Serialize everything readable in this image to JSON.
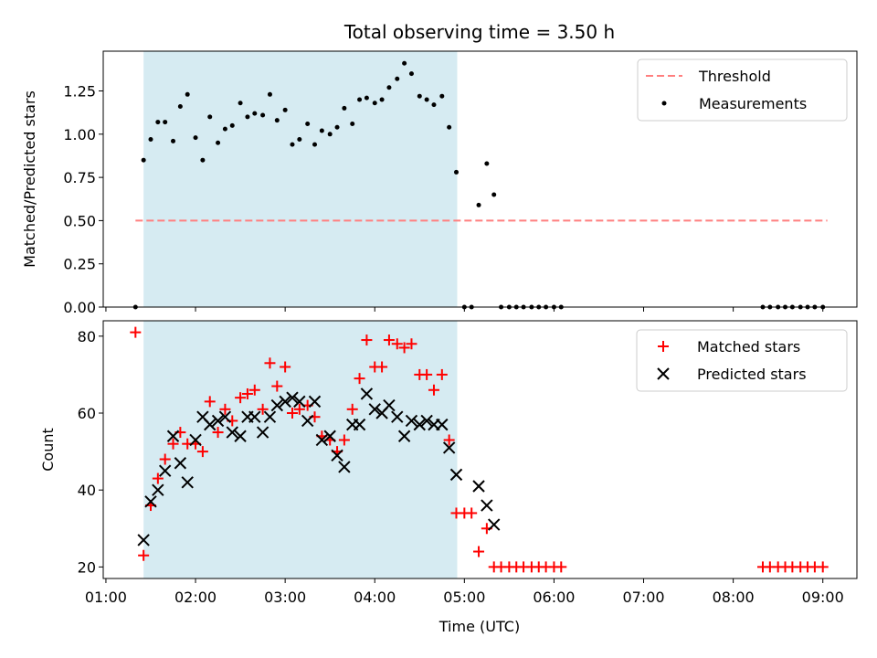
{
  "title": "Total observing time = 3.50 h",
  "colors": {
    "threshold": "#ff7f7f",
    "measurements": "#000000",
    "matched": "#ff0000",
    "predicted": "#000000",
    "span": "#add8e6"
  },
  "chart_data": [
    {
      "type": "scatter",
      "title": "Total observing time = 3.50 h",
      "xlabel": "",
      "ylabel": "Matched/Predicted stars",
      "xlim": [
        0.97,
        9.38
      ],
      "ylim": [
        0,
        1.48
      ],
      "yticks": [
        0.0,
        0.25,
        0.5,
        0.75,
        1.0,
        1.25
      ],
      "ytick_labels": [
        "0.00",
        "0.25",
        "0.50",
        "0.75",
        "1.00",
        "1.25"
      ],
      "xticks": [
        1,
        2,
        3,
        4,
        5,
        6,
        7,
        8,
        9
      ],
      "shaded_span": [
        1.42,
        4.92
      ],
      "legend": {
        "placement": "upper right",
        "entries": [
          "Threshold",
          "Measurements"
        ]
      },
      "series": [
        {
          "name": "Threshold",
          "kind": "dashed-line",
          "x": [
            1.33,
            9.05
          ],
          "y": [
            0.5,
            0.5
          ]
        },
        {
          "name": "Measurements",
          "kind": "points",
          "x": [
            1.33,
            1.42,
            1.5,
            1.58,
            1.66,
            1.75,
            1.83,
            1.91,
            2.0,
            2.08,
            2.16,
            2.25,
            2.33,
            2.41,
            2.5,
            2.58,
            2.66,
            2.75,
            2.83,
            2.91,
            3.0,
            3.08,
            3.16,
            3.25,
            3.33,
            3.41,
            3.5,
            3.58,
            3.66,
            3.75,
            3.83,
            3.91,
            4.0,
            4.08,
            4.16,
            4.25,
            4.33,
            4.41,
            4.5,
            4.58,
            4.66,
            4.75,
            4.83,
            4.91,
            5.0,
            5.08,
            5.16,
            5.25,
            5.33,
            5.41,
            5.5,
            5.58,
            5.66,
            5.75,
            5.83,
            5.91,
            6.0,
            6.08,
            8.33,
            8.41,
            8.5,
            8.58,
            8.66,
            8.75,
            8.83,
            8.91,
            9.0
          ],
          "y": [
            0.0,
            0.85,
            0.97,
            1.07,
            1.07,
            0.96,
            1.16,
            1.23,
            0.98,
            0.85,
            1.1,
            0.95,
            1.03,
            1.05,
            1.18,
            1.1,
            1.12,
            1.11,
            1.23,
            1.08,
            1.14,
            0.94,
            0.97,
            1.06,
            0.94,
            1.02,
            1.0,
            1.04,
            1.15,
            1.06,
            1.2,
            1.21,
            1.18,
            1.2,
            1.27,
            1.32,
            1.41,
            1.35,
            1.22,
            1.2,
            1.17,
            1.22,
            1.04,
            0.78,
            0.0,
            0.0,
            0.59,
            0.83,
            0.65,
            0.0,
            0.0,
            0.0,
            0.0,
            0.0,
            0.0,
            0.0,
            0.0,
            0.0,
            0.0,
            0.0,
            0.0,
            0.0,
            0.0,
            0.0,
            0.0,
            0.0,
            0.0
          ]
        }
      ]
    },
    {
      "type": "scatter",
      "title": "",
      "xlabel": "Time (UTC)",
      "ylabel": "Count",
      "xlim": [
        0.97,
        9.38
      ],
      "ylim": [
        17,
        84
      ],
      "yticks": [
        20,
        40,
        60,
        80
      ],
      "ytick_labels": [
        "20",
        "40",
        "60",
        "80"
      ],
      "xticks": [
        1,
        2,
        3,
        4,
        5,
        6,
        7,
        8,
        9
      ],
      "xtick_labels": [
        "01:00",
        "02:00",
        "03:00",
        "04:00",
        "05:00",
        "06:00",
        "07:00",
        "08:00",
        "09:00"
      ],
      "shaded_span": [
        1.42,
        4.92
      ],
      "legend": {
        "placement": "upper right",
        "entries": [
          "Matched stars",
          "Predicted stars"
        ]
      },
      "series": [
        {
          "name": "Matched stars",
          "kind": "plus",
          "x": [
            1.33,
            1.42,
            1.5,
            1.58,
            1.66,
            1.75,
            1.83,
            1.91,
            2.0,
            2.08,
            2.16,
            2.25,
            2.33,
            2.41,
            2.5,
            2.58,
            2.66,
            2.75,
            2.83,
            2.91,
            3.0,
            3.08,
            3.16,
            3.25,
            3.33,
            3.41,
            3.5,
            3.58,
            3.66,
            3.75,
            3.83,
            3.91,
            4.0,
            4.08,
            4.16,
            4.25,
            4.33,
            4.41,
            4.5,
            4.58,
            4.66,
            4.75,
            4.83,
            4.91,
            5.0,
            5.08,
            5.16,
            5.25,
            5.33,
            5.41,
            5.5,
            5.58,
            5.66,
            5.75,
            5.83,
            5.91,
            6.0,
            6.08,
            8.33,
            8.41,
            8.5,
            8.58,
            8.66,
            8.75,
            8.83,
            8.91,
            9.0
          ],
          "y": [
            81,
            23,
            36,
            43,
            48,
            52,
            55,
            52,
            52,
            50,
            63,
            55,
            61,
            58,
            64,
            65,
            66,
            61,
            73,
            67,
            72,
            60,
            61,
            62,
            59,
            54,
            53,
            50,
            53,
            61,
            69,
            79,
            72,
            72,
            79,
            78,
            77,
            78,
            70,
            70,
            66,
            70,
            53,
            34,
            34,
            34,
            24,
            30,
            20,
            20,
            20,
            20,
            20,
            20,
            20,
            20,
            20,
            20,
            20,
            20,
            20,
            20,
            20,
            20,
            20,
            20,
            20
          ]
        },
        {
          "name": "Predicted stars",
          "kind": "x",
          "x": [
            1.42,
            1.5,
            1.58,
            1.66,
            1.75,
            1.83,
            1.91,
            2.0,
            2.08,
            2.16,
            2.25,
            2.33,
            2.41,
            2.5,
            2.58,
            2.66,
            2.75,
            2.83,
            2.91,
            3.0,
            3.08,
            3.16,
            3.25,
            3.33,
            3.41,
            3.5,
            3.58,
            3.66,
            3.75,
            3.83,
            3.91,
            4.0,
            4.08,
            4.16,
            4.25,
            4.33,
            4.41,
            4.5,
            4.58,
            4.66,
            4.75,
            4.83,
            4.91,
            5.16,
            5.25,
            5.33
          ],
          "y": [
            27,
            37,
            40,
            45,
            54,
            47,
            42,
            53,
            59,
            57,
            58,
            59,
            55,
            54,
            59,
            59,
            55,
            59,
            62,
            63,
            64,
            63,
            58,
            63,
            53,
            54,
            49,
            46,
            57,
            57,
            65,
            61,
            60,
            62,
            59,
            54,
            58,
            57,
            58,
            57,
            57,
            51,
            44,
            41,
            36,
            31
          ]
        }
      ]
    }
  ]
}
